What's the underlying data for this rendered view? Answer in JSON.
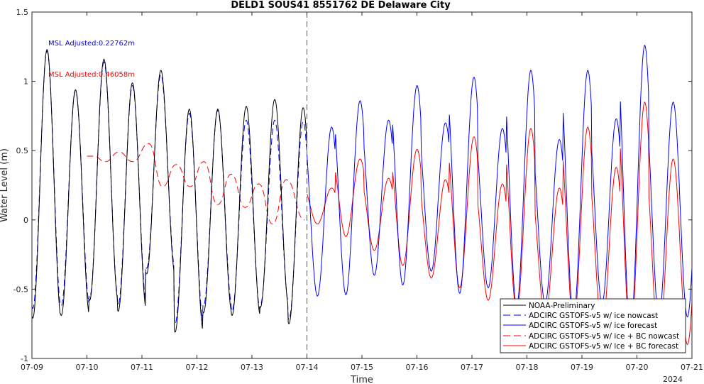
{
  "chart_data": {
    "type": "line",
    "title": "DELD1 SOUS41 8551762 DE Delaware City",
    "xlabel": "Time",
    "ylabel": "Water Level (m)",
    "year_label": "2024",
    "xlim": [
      "07-09",
      "07-21"
    ],
    "ylim": [
      -1,
      1.5
    ],
    "x_ticks": [
      "07-09",
      "07-10",
      "07-11",
      "07-12",
      "07-13",
      "07-14",
      "07-15",
      "07-16",
      "07-17",
      "07-18",
      "07-19",
      "07-20",
      "07-21"
    ],
    "y_ticks": [
      "-1",
      "-0.5",
      "0",
      "0.5",
      "1",
      "1.5"
    ],
    "grid": false,
    "legend_position": "bottom-right",
    "nowcast_forecast_divider_x": "07-14",
    "annotations": [
      {
        "text": "MSL Adjusted:0.22762m",
        "color": "#0000ff"
      },
      {
        "text": "MSL Adjusted:0.46058m",
        "color": "#ff0000"
      }
    ],
    "tidal_period_hours": 12.42,
    "series": [
      {
        "name": "NOAA-Preliminary",
        "color": "#000000",
        "style": "solid",
        "x_range": [
          "07-09",
          "07-14"
        ],
        "high_water": [
          1.23,
          0.94,
          1.16,
          0.99,
          1.08,
          0.8,
          0.8,
          0.82,
          0.87,
          0.81,
          0.79
        ],
        "low_water": [
          -0.71,
          -0.69,
          -0.58,
          -0.66,
          -0.39,
          -0.81,
          -0.67,
          -0.69,
          -0.63,
          -0.75,
          -0.65
        ]
      },
      {
        "name": "ADCIRC GSTOFS-v5 w/ ice nowcast",
        "color": "#0000ff",
        "style": "dashed",
        "x_range": [
          "07-09",
          "07-14"
        ],
        "high_water": [
          1.22,
          0.93,
          1.14,
          0.97,
          1.05,
          0.77,
          0.79,
          0.72,
          0.72,
          0.71
        ],
        "low_water": [
          -0.64,
          -0.62,
          -0.56,
          -0.61,
          -0.35,
          -0.75,
          -0.62,
          -0.66,
          -0.61,
          -0.72
        ]
      },
      {
        "name": "ADCIRC GSTOFS-v5 w/ ice forecast",
        "color": "#0000ff",
        "style": "solid",
        "x_range": [
          "07-14",
          "07-21"
        ],
        "high_water": [
          0.67,
          0.86,
          0.72,
          0.97,
          0.7,
          1.03,
          0.66,
          1.08,
          0.58,
          1.08,
          0.73,
          1.26,
          0.85
        ],
        "low_water": [
          -0.55,
          -0.54,
          -0.4,
          -0.47,
          -0.37,
          -0.53,
          -0.49,
          -0.62,
          -0.6,
          -0.7,
          -0.6,
          -0.8,
          -0.7
        ]
      },
      {
        "name": "ADCIRC GSTOFS-v5 w/ ice + BC nowcast",
        "color": "#ff0000",
        "style": "dashed",
        "x_range": [
          "07-10",
          "07-14"
        ],
        "points": [
          [
            "07-10 00:00",
            0.46
          ],
          [
            "07-10 03:00",
            0.46
          ],
          [
            "07-10 08:00",
            0.42
          ],
          [
            "07-10 14:00",
            0.49
          ],
          [
            "07-10 20:00",
            0.42
          ],
          [
            "07-11 03:00",
            0.55
          ],
          [
            "07-11 09:00",
            0.24
          ],
          [
            "07-11 15:00",
            0.4
          ],
          [
            "07-11 21:00",
            0.24
          ],
          [
            "07-12 03:00",
            0.42
          ],
          [
            "07-12 09:00",
            0.11
          ],
          [
            "07-12 15:00",
            0.33
          ],
          [
            "07-12 21:00",
            0.09
          ],
          [
            "07-13 03:00",
            0.26
          ],
          [
            "07-13 09:00",
            -0.03
          ],
          [
            "07-13 15:00",
            0.29
          ],
          [
            "07-13 23:00",
            0.0
          ]
        ]
      },
      {
        "name": "ADCIRC GSTOFS-v5 w/ ice + BC forecast",
        "color": "#ff0000",
        "style": "solid",
        "x_range": [
          "07-14",
          "07-21"
        ],
        "high_water": [
          0.23,
          0.44,
          0.3,
          0.51,
          0.29,
          0.6,
          0.26,
          0.66,
          0.23,
          0.67,
          0.38,
          0.85,
          0.44
        ],
        "low_water": [
          -0.03,
          -0.12,
          -0.22,
          -0.33,
          -0.42,
          -0.49,
          -0.58,
          -0.66,
          -0.7,
          -0.75,
          -0.78,
          -0.85,
          -0.9
        ]
      }
    ]
  }
}
